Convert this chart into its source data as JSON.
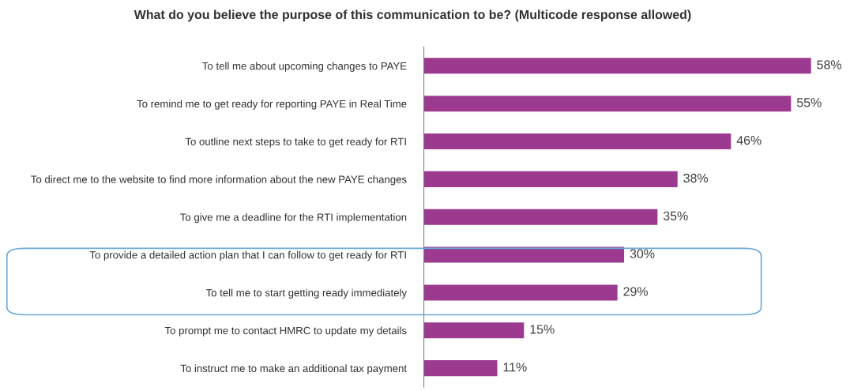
{
  "chart_data": {
    "type": "bar",
    "orientation": "horizontal",
    "title": "What do you believe the purpose of this communication to be? (Multicode response allowed)",
    "categories": [
      "To tell me about upcoming changes to PAYE",
      "To remind me to get ready for reporting PAYE in Real Time",
      "To outline next steps to take to get ready for RTI",
      "To direct me to the website to find more information about the new PAYE changes",
      "To give me a deadline for the RTI implementation",
      "To provide a detailed action plan that I can follow to get ready for RTI",
      "To tell me to start getting ready immediately",
      "To prompt me to contact HMRC to update my details",
      "To instruct me to make an additional tax payment"
    ],
    "values": [
      58,
      55,
      46,
      38,
      35,
      30,
      29,
      15,
      11
    ],
    "value_labels": [
      "58%",
      "55%",
      "46%",
      "38%",
      "35%",
      "30%",
      "29%",
      "15%",
      "11%"
    ],
    "color": "#9b3a8e",
    "tick_labels": "y",
    "grid": false
  }
}
